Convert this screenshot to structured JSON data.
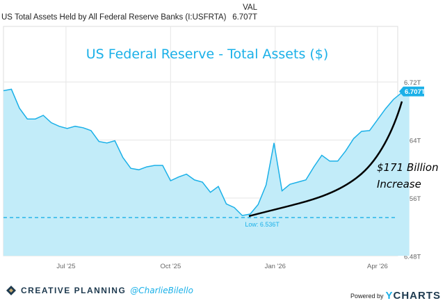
{
  "header": {
    "series_name": "US Total Assets Held by All Federal Reserve Banks (I:USFRTA)",
    "value_header": "VAL",
    "value": "6.707T"
  },
  "chart_data": {
    "type": "area",
    "title": "US Federal Reserve - Total Assets ($)",
    "xlabel": "",
    "ylabel": "",
    "x_start": "2025-05-07",
    "x_step_days": 7,
    "x_ticks": [
      "Jul '25",
      "Oct '25",
      "Jan '26",
      "Apr '26"
    ],
    "x_tick_dates": [
      "2025-07-01",
      "2025-10-01",
      "2026-01-01",
      "2026-04-01"
    ],
    "y_ticks": [
      "6.48T",
      "6.56T",
      "6.64T",
      "6.72T"
    ],
    "y_tick_values": [
      6.48,
      6.56,
      6.64,
      6.72
    ],
    "ylim": [
      6.48,
      6.735
    ],
    "grid": true,
    "values": [
      6.708,
      6.71,
      6.684,
      6.669,
      6.669,
      6.674,
      6.664,
      6.659,
      6.656,
      6.659,
      6.657,
      6.653,
      6.638,
      6.636,
      6.639,
      6.616,
      6.601,
      6.599,
      6.603,
      6.605,
      6.605,
      6.584,
      6.589,
      6.593,
      6.585,
      6.582,
      6.568,
      6.576,
      6.552,
      6.547,
      6.536,
      6.538,
      6.551,
      6.578,
      6.636,
      6.57,
      6.579,
      6.582,
      6.585,
      6.603,
      6.619,
      6.611,
      6.611,
      6.625,
      6.642,
      6.652,
      6.653,
      6.668,
      6.683,
      6.696,
      6.705,
      6.707
    ],
    "last_value_label": "6.707T",
    "low_label": "Low: 6.536T",
    "low_value": 6.536,
    "annotation": [
      "$171 Billion",
      "Increase"
    ],
    "colors": {
      "line": "#1ab0e8",
      "fill": "#c2ecf9",
      "annotation": "#000000"
    }
  },
  "footer": {
    "brand": "CREATIVE PLANNING",
    "handle": "@CharlieBilello",
    "powered": "Powered by",
    "ycharts_y": "Y",
    "ycharts_rest": "CHARTS"
  }
}
